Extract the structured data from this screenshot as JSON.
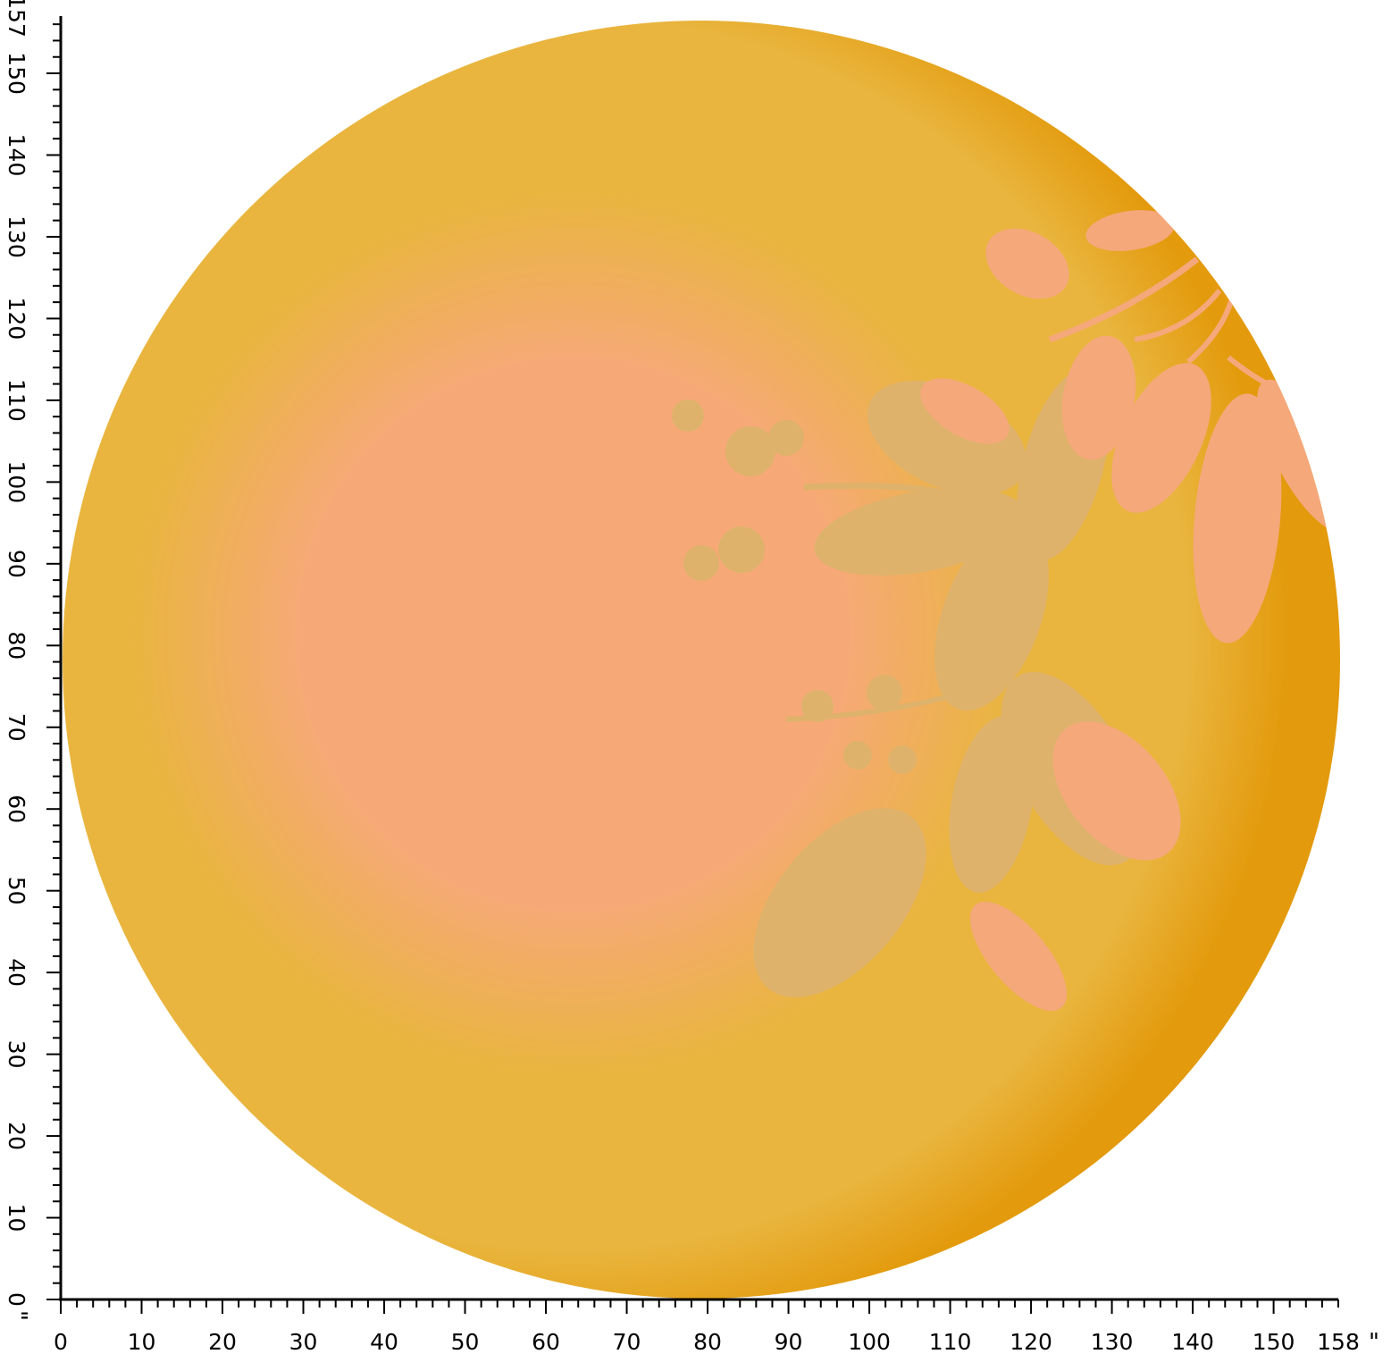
{
  "rug": {
    "shape": "circle",
    "colors": {
      "outer": "#E39A0C",
      "ring": "#E9B53E",
      "center": "#F6A977",
      "foliage_light": "#F5A87A",
      "foliage_muted": "#DFB26B"
    }
  },
  "ruler": {
    "unit_symbol": "\"",
    "horizontal": {
      "labels": [
        "0",
        "10",
        "20",
        "30",
        "40",
        "50",
        "60",
        "70",
        "80",
        "90",
        "100",
        "110",
        "120",
        "130",
        "140",
        "150",
        "158"
      ],
      "max": 158
    },
    "vertical": {
      "labels": [
        "0",
        "10",
        "20",
        "30",
        "40",
        "50",
        "60",
        "70",
        "80",
        "90",
        "100",
        "110",
        "120",
        "130",
        "140",
        "150",
        "157"
      ],
      "max": 157
    },
    "color": "#000000"
  }
}
